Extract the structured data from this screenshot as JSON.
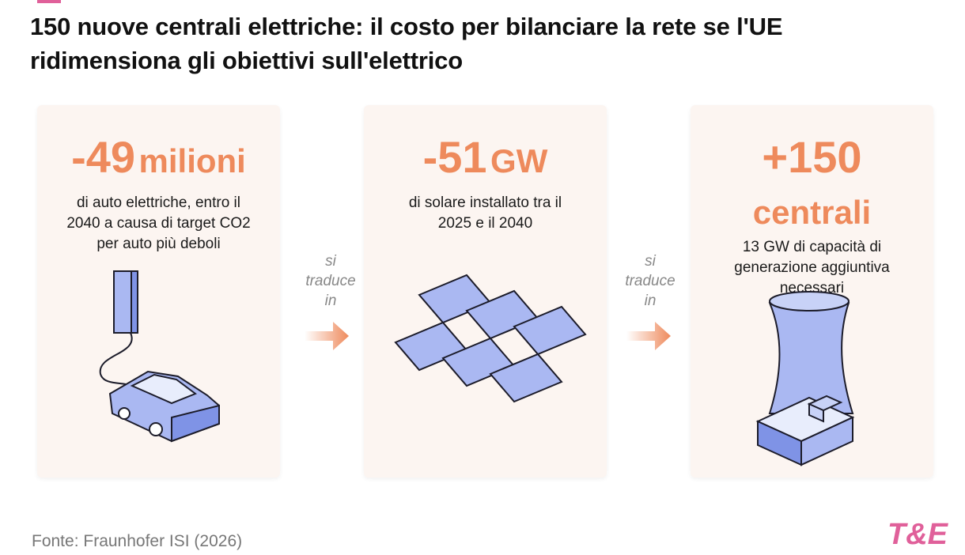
{
  "title": "150 nuove centrali elettriche: il costo per bilanciare la rete se l'UE ridimensiona gli obiettivi sull'elettrico",
  "cards": [
    {
      "figure": "-49",
      "unit": "milioni",
      "lines": [
        "di auto elettriche, entro il",
        "2040 a causa di target CO2",
        "per auto più deboli"
      ]
    },
    {
      "figure": "-51",
      "unit": "GW",
      "lines": [
        "di solare installato tra il",
        "2025 e il 2040"
      ]
    },
    {
      "figure": "+150",
      "unit": "centrali",
      "lines": [
        "13 GW di capacità di",
        "generazione aggiuntiva",
        "necessari"
      ]
    }
  ],
  "connectors": [
    [
      "si",
      "traduce",
      "in"
    ],
    [
      "si",
      "traduce",
      "in"
    ]
  ],
  "source": "Fonte: Fraunhofer ISI (2026)",
  "logo": "T&E"
}
